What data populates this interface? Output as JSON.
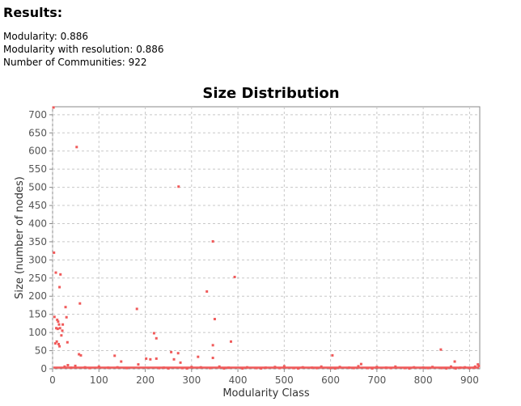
{
  "results": {
    "title": "Results:",
    "modularity": "Modularity: 0.886",
    "modularity_resolution": "Modularity with resolution: 0.886",
    "communities": "Number of Communities: 922"
  },
  "chart_data": {
    "type": "scatter",
    "title": "Size Distribution",
    "xlabel": "Modularity Class",
    "ylabel": "Size (number of nodes)",
    "xlim": [
      0,
      922
    ],
    "ylim": [
      0,
      722
    ],
    "x_ticks": [
      0,
      100,
      200,
      300,
      400,
      500,
      600,
      700,
      800,
      900
    ],
    "y_ticks": [
      0,
      50,
      100,
      150,
      200,
      250,
      300,
      350,
      400,
      450,
      500,
      550,
      600,
      650,
      700
    ],
    "grid": true,
    "point_color": "#f05a5a",
    "points": [
      [
        2,
        720
      ],
      [
        52,
        611
      ],
      [
        272,
        502
      ],
      [
        346,
        351
      ],
      [
        3,
        320
      ],
      [
        7,
        265
      ],
      [
        17,
        260
      ],
      [
        393,
        253
      ],
      [
        15,
        225
      ],
      [
        333,
        213
      ],
      [
        59,
        180
      ],
      [
        28,
        170
      ],
      [
        182,
        165
      ],
      [
        4,
        143
      ],
      [
        30,
        142
      ],
      [
        350,
        137
      ],
      [
        10,
        135
      ],
      [
        12,
        130
      ],
      [
        14,
        122
      ],
      [
        22,
        122
      ],
      [
        8,
        112
      ],
      [
        11,
        110
      ],
      [
        16,
        112
      ],
      [
        21,
        105
      ],
      [
        219,
        98
      ],
      [
        19,
        92
      ],
      [
        224,
        84
      ],
      [
        9,
        75
      ],
      [
        385,
        75
      ],
      [
        32,
        73
      ],
      [
        6,
        70
      ],
      [
        13,
        68
      ],
      [
        15,
        62
      ],
      [
        346,
        65
      ],
      [
        838,
        53
      ],
      [
        256,
        46
      ],
      [
        271,
        43
      ],
      [
        57,
        40
      ],
      [
        61,
        37
      ],
      [
        604,
        37
      ],
      [
        134,
        36
      ],
      [
        314,
        33
      ],
      [
        346,
        30
      ],
      [
        202,
        28
      ],
      [
        211,
        26
      ],
      [
        262,
        26
      ],
      [
        224,
        28
      ],
      [
        148,
        20
      ],
      [
        868,
        20
      ],
      [
        276,
        17
      ],
      [
        666,
        13
      ],
      [
        185,
        12
      ],
      [
        33,
        10
      ],
      [
        49,
        8
      ],
      [
        26,
        6
      ],
      [
        920,
        8
      ],
      [
        918,
        12
      ],
      [
        912,
        6
      ],
      [
        70,
        4
      ],
      [
        100,
        6
      ],
      [
        120,
        3
      ],
      [
        300,
        5
      ],
      [
        360,
        6
      ],
      [
        420,
        4
      ],
      [
        480,
        5
      ],
      [
        500,
        7
      ],
      [
        540,
        4
      ],
      [
        580,
        6
      ],
      [
        620,
        5
      ],
      [
        660,
        7
      ],
      [
        700,
        5
      ],
      [
        740,
        6
      ],
      [
        780,
        4
      ],
      [
        820,
        5
      ],
      [
        860,
        6
      ],
      [
        890,
        4
      ],
      [
        40,
        3
      ],
      [
        80,
        2
      ],
      [
        140,
        4
      ],
      [
        160,
        2
      ],
      [
        240,
        3
      ],
      [
        280,
        2
      ],
      [
        320,
        4
      ],
      [
        380,
        3
      ],
      [
        440,
        2
      ],
      [
        460,
        3
      ],
      [
        520,
        2
      ],
      [
        560,
        3
      ],
      [
        600,
        2
      ],
      [
        640,
        3
      ],
      [
        680,
        2
      ],
      [
        720,
        3
      ],
      [
        760,
        2
      ],
      [
        800,
        3
      ],
      [
        840,
        2
      ],
      [
        880,
        3
      ],
      [
        900,
        2
      ],
      [
        910,
        3
      ],
      [
        230,
        2
      ],
      [
        250,
        1
      ],
      [
        290,
        1
      ],
      [
        340,
        2
      ],
      [
        370,
        1
      ],
      [
        410,
        1
      ],
      [
        450,
        1
      ],
      [
        490,
        2
      ],
      [
        530,
        1
      ],
      [
        570,
        2
      ],
      [
        610,
        1
      ],
      [
        650,
        2
      ],
      [
        690,
        1
      ],
      [
        730,
        2
      ],
      [
        770,
        1
      ],
      [
        810,
        2
      ],
      [
        850,
        1
      ],
      [
        870,
        1
      ]
    ]
  }
}
